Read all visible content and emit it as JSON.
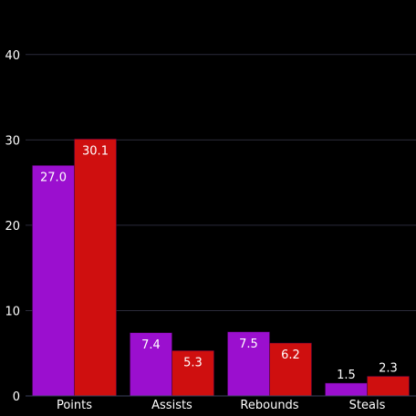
{
  "colors": {
    "background": "#000000",
    "grid": "#2b2b3a",
    "axis_line": "#3a3f5c",
    "text": "#ffffff",
    "label_inside": "#ffffff",
    "label_outside": "#ffffff"
  },
  "chart_data": {
    "type": "bar",
    "categories": [
      "Points",
      "Assists",
      "Rebounds",
      "Steals"
    ],
    "series": [
      {
        "values": [
          27.0,
          7.4,
          7.5,
          1.5
        ],
        "color": "#9b0fcf",
        "labels": [
          "27.0",
          "7.4",
          "7.5",
          "1.5"
        ]
      },
      {
        "values": [
          30.1,
          5.3,
          6.2,
          2.3
        ],
        "color": "#cf0f0f",
        "labels": [
          "30.1",
          "5.3",
          "6.2",
          "2.3"
        ]
      }
    ],
    "ylim": [
      0,
      45
    ],
    "yticks": [
      0,
      10,
      20,
      30,
      40
    ],
    "ytick_labels": [
      "0",
      "10",
      "20",
      "30",
      "40"
    ],
    "grid": true,
    "legend": "none",
    "title": "",
    "xlabel": "",
    "ylabel": ""
  }
}
